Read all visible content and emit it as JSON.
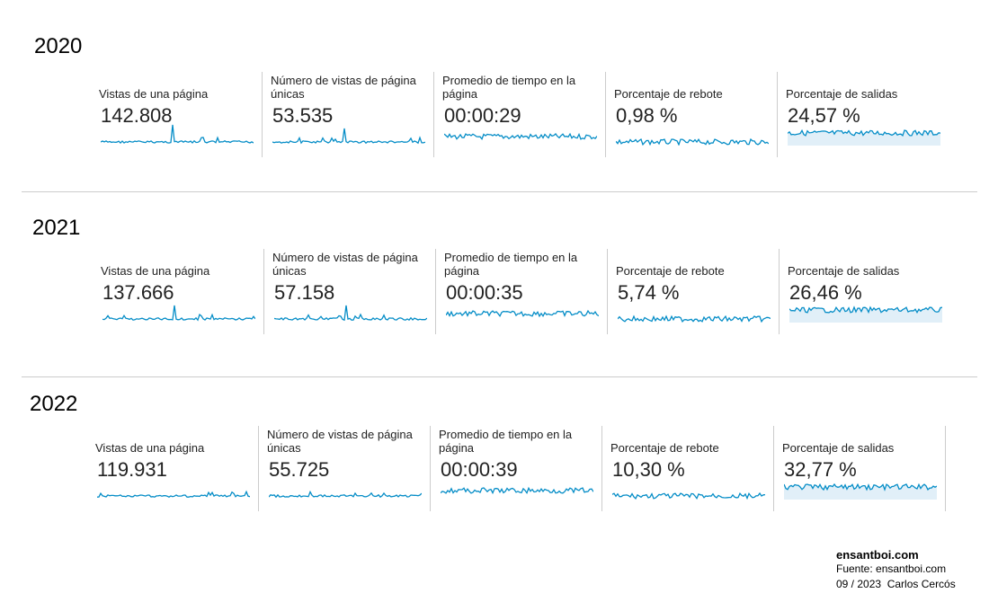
{
  "sections": [
    {
      "year": "2020",
      "metrics": [
        {
          "label": "Vistas de una página",
          "value": "142.808"
        },
        {
          "label": "Número de vistas de página únicas",
          "value": "53.535"
        },
        {
          "label": "Promedio de tiempo en la página",
          "value": "00:00:29"
        },
        {
          "label": "Porcentaje de rebote",
          "value": "0,98 %"
        },
        {
          "label": "Porcentaje de salidas",
          "value": "24,57 %"
        }
      ]
    },
    {
      "year": "2021",
      "metrics": [
        {
          "label": "Vistas de una página",
          "value": "137.666"
        },
        {
          "label": "Número de vistas de página únicas",
          "value": "57.158"
        },
        {
          "label": "Promedio de tiempo en la página",
          "value": "00:00:35"
        },
        {
          "label": "Porcentaje de rebote",
          "value": "5,74 %"
        },
        {
          "label": "Porcentaje de salidas",
          "value": "26,46 %"
        }
      ]
    },
    {
      "year": "2022",
      "metrics": [
        {
          "label": "Vistas de una página",
          "value": "119.931"
        },
        {
          "label": "Número de vistas de página únicas",
          "value": "55.725"
        },
        {
          "label": "Promedio de tiempo en la página",
          "value": "00:00:39"
        },
        {
          "label": "Porcentaje de rebote",
          "value": "10,30 %"
        },
        {
          "label": "Porcentaje de salidas",
          "value": "32,77 %"
        }
      ]
    }
  ],
  "footer": {
    "site": "ensantboi.com",
    "source": "Fuente: ensantboi.com",
    "credit": "09 / 2023  Carlos Cercós"
  }
}
